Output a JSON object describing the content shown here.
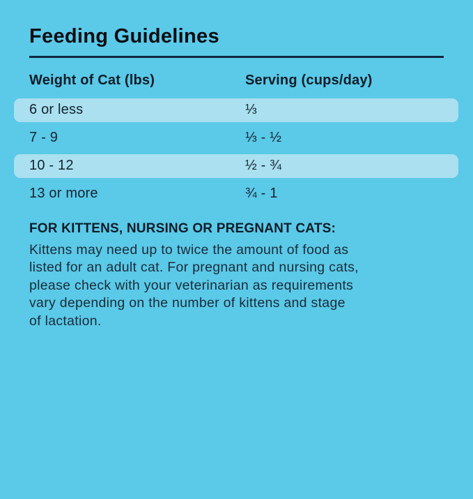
{
  "title": "Feeding Guidelines",
  "table": {
    "headers": [
      "Weight of Cat (lbs)",
      "Serving (cups/day)"
    ],
    "rows": [
      {
        "weight": "6 or less",
        "serving": "⅓",
        "highlighted": true
      },
      {
        "weight": "7 - 9",
        "serving": "⅓ - ½",
        "highlighted": false
      },
      {
        "weight": "10 - 12",
        "serving": "½ - ¾",
        "highlighted": true
      },
      {
        "weight": "13 or more",
        "serving": "¾ - 1",
        "highlighted": false
      }
    ]
  },
  "note": {
    "heading": "FOR KITTENS, NURSING OR PREGNANT CATS:",
    "lines": [
      "Kittens may need up to twice the amount of food as",
      "listed for an adult cat. For pregnant and nursing cats,",
      "please check with your veterinarian as requirements",
      "vary depending on the number of kittens and stage",
      "of lactation."
    ]
  },
  "colors": {
    "background": "#5BC9E8",
    "row_highlight": "#AAE0F0",
    "text_dark": "#0E1D28",
    "divider": "#0D2940"
  }
}
